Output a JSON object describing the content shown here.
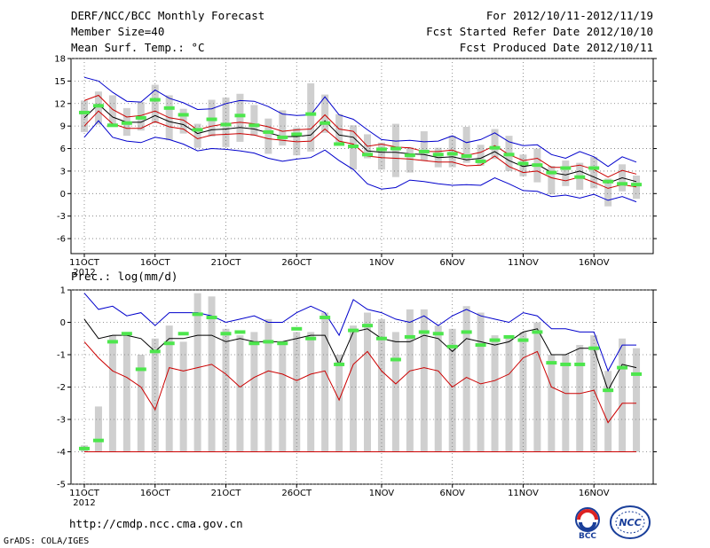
{
  "header": {
    "left": [
      "DERF/NCC/BCC Monthly Forecast",
      "Member Size=40",
      "Mean Surf. Temp.: °C"
    ],
    "right": [
      "For 2012/10/11-2012/11/19",
      "Fcst Started Refer Date 2012/10/10",
      "Fcst Produced Date 2012/10/11"
    ]
  },
  "footer": {
    "url": "http://cmdp.ncc.cma.gov.cn",
    "credit": "GrADS: COLA/IGES"
  },
  "logos": {
    "bcc_text": "BCC",
    "ncc_text": "NCC"
  },
  "colors": {
    "bar": "#cfcfcf",
    "mean": "#000000",
    "max": "#0000cc",
    "min": "#cc0000",
    "obs": "#4de64d",
    "grid": "#777777"
  },
  "chart_data": [
    {
      "type": "line",
      "title": "Mean Surf. Temp.: °C",
      "xlabel": "",
      "ylabel": "",
      "x_tick_labels": [
        "11OCT",
        "16OCT",
        "21OCT",
        "26OCT",
        "1NOV",
        "6NOV",
        "11NOV",
        "16NOV"
      ],
      "x_year_label": "2012",
      "x_tick_days": [
        1,
        6,
        11,
        16,
        22,
        27,
        32,
        37
      ],
      "days": 40,
      "ylim": [
        -8,
        18
      ],
      "yticks": [
        -6,
        -3,
        0,
        3,
        6,
        9,
        12,
        15,
        18
      ],
      "series": [
        {
          "name": "ensemble max",
          "color": "blue",
          "values": [
            15.5,
            15.0,
            13.5,
            12.3,
            12.2,
            13.8,
            12.7,
            12.1,
            11.2,
            11.3,
            12.0,
            12.4,
            12.3,
            11.6,
            10.6,
            10.4,
            10.5,
            12.9,
            10.5,
            9.9,
            8.5,
            7.2,
            7.0,
            7.1,
            6.9,
            7.0,
            7.7,
            6.8,
            7.2,
            8.1,
            6.9,
            6.4,
            6.5,
            5.2,
            4.7,
            5.6,
            4.9,
            3.6,
            4.9,
            4.2
          ]
        },
        {
          "name": "upper bound",
          "color": "red",
          "values": [
            12.4,
            13.1,
            11.2,
            10.2,
            10.4,
            11.0,
            10.1,
            9.8,
            8.5,
            9.0,
            9.3,
            9.5,
            9.3,
            8.9,
            8.3,
            8.5,
            8.6,
            10.5,
            8.6,
            8.3,
            6.3,
            6.6,
            6.2,
            6.1,
            5.6,
            5.6,
            5.8,
            5.1,
            5.5,
            6.4,
            5.2,
            4.4,
            4.7,
            3.5,
            3.5,
            3.8,
            3.2,
            2.2,
            3.1,
            2.6
          ]
        },
        {
          "name": "ensemble mean",
          "color": "black",
          "values": [
            10.1,
            11.9,
            10.2,
            9.5,
            9.5,
            10.4,
            9.6,
            9.2,
            8.0,
            8.5,
            8.6,
            8.8,
            8.6,
            8.1,
            7.6,
            7.6,
            7.8,
            9.7,
            7.8,
            7.5,
            5.7,
            5.5,
            5.5,
            5.3,
            5.2,
            4.8,
            4.9,
            4.5,
            4.7,
            5.6,
            4.4,
            3.6,
            3.9,
            2.8,
            2.5,
            3.0,
            2.2,
            1.4,
            2.1,
            1.6
          ]
        },
        {
          "name": "lower bound",
          "color": "red",
          "values": [
            9.0,
            11.0,
            9.3,
            8.7,
            8.7,
            9.6,
            8.9,
            8.6,
            7.3,
            7.8,
            7.9,
            8.0,
            7.8,
            7.3,
            7.1,
            6.9,
            7.0,
            8.6,
            7.0,
            6.6,
            5.0,
            4.8,
            4.7,
            4.6,
            4.4,
            4.2,
            4.2,
            3.7,
            3.8,
            5.0,
            3.6,
            2.8,
            3.0,
            2.1,
            1.7,
            2.2,
            1.5,
            0.7,
            1.2,
            0.9
          ]
        },
        {
          "name": "ensemble min",
          "color": "blue",
          "values": [
            7.5,
            9.7,
            7.5,
            7.0,
            6.8,
            7.5,
            7.2,
            6.6,
            5.7,
            6.0,
            5.9,
            5.7,
            5.4,
            4.7,
            4.3,
            4.6,
            4.8,
            5.8,
            4.4,
            3.2,
            1.3,
            0.6,
            0.8,
            1.8,
            1.6,
            1.3,
            1.1,
            1.2,
            1.1,
            2.1,
            1.3,
            0.4,
            0.3,
            -0.4,
            -0.2,
            -0.6,
            -0.1,
            -0.9,
            -0.4,
            -1.1
          ]
        },
        {
          "name": "observation/forecast marker",
          "color": "green",
          "values": [
            10.8,
            11.7,
            9.1,
            9.4,
            10.1,
            12.5,
            11.4,
            10.5,
            8.5,
            9.9,
            9.2,
            10.4,
            9.1,
            8.2,
            7.5,
            7.9,
            10.6,
            9.4,
            6.6,
            6.3,
            5.2,
            5.9,
            6.0,
            5.1,
            5.6,
            5.2,
            5.3,
            5.0,
            4.3,
            6.1,
            5.2,
            4.0,
            3.8,
            2.8,
            3.4,
            2.2,
            3.4,
            1.6,
            1.3,
            1.2
          ]
        }
      ],
      "bars": [
        {
          "name": "spread low",
          "values": [
            8.2,
            9.2,
            9.0,
            7.7,
            8.4,
            9.4,
            7.1,
            8.0,
            6.1,
            7.6,
            6.2,
            6.9,
            7.7,
            5.3,
            6.4,
            5.1,
            5.6,
            8.1,
            6.5,
            3.2,
            4.7,
            3.2,
            2.2,
            2.8,
            4.4,
            3.5,
            3.5,
            4.1,
            3.7,
            4.6,
            3.0,
            2.3,
            1.5,
            -0.1,
            1.0,
            0.5,
            0.7,
            -1.7,
            0.3,
            -0.7
          ]
        },
        {
          "name": "spread high",
          "values": [
            12.4,
            13.6,
            13.1,
            11.4,
            12.2,
            14.5,
            13.1,
            11.3,
            9.3,
            12.5,
            12.8,
            13.3,
            11.8,
            10.0,
            11.1,
            8.8,
            14.7,
            13.2,
            10.6,
            9.1,
            7.9,
            6.8,
            9.3,
            6.2,
            8.3,
            6.1,
            7.7,
            8.9,
            6.5,
            8.6,
            7.7,
            5.2,
            6.0,
            3.7,
            4.4,
            4.1,
            4.9,
            2.0,
            3.9,
            2.4
          ]
        }
      ]
    },
    {
      "type": "line",
      "title": "Prec.: log(mm/d)",
      "xlabel": "",
      "ylabel": "",
      "x_tick_labels": [
        "11OCT",
        "16OCT",
        "21OCT",
        "26OCT",
        "1NOV",
        "6NOV",
        "11NOV",
        "16NOV"
      ],
      "x_year_label": "2012",
      "x_tick_days": [
        1,
        6,
        11,
        16,
        22,
        27,
        32,
        37
      ],
      "days": 40,
      "ylim": [
        -5,
        1
      ],
      "yticks": [
        -5,
        -4,
        -3,
        -2,
        -1,
        0,
        1
      ],
      "series": [
        {
          "name": "ensemble max",
          "color": "blue",
          "values": [
            0.9,
            0.4,
            0.5,
            0.2,
            0.3,
            -0.1,
            0.3,
            0.3,
            0.3,
            0.2,
            0.0,
            0.1,
            0.2,
            0.0,
            0.0,
            0.3,
            0.5,
            0.3,
            -0.4,
            0.7,
            0.4,
            0.3,
            0.1,
            0.0,
            0.2,
            -0.1,
            0.2,
            0.4,
            0.2,
            0.1,
            0.0,
            0.3,
            0.2,
            -0.2,
            -0.2,
            -0.3,
            -0.3,
            -1.5,
            -0.7,
            -0.7
          ]
        },
        {
          "name": "ensemble mean",
          "color": "black",
          "values": [
            0.1,
            -0.5,
            -0.4,
            -0.4,
            -0.5,
            -0.9,
            -0.5,
            -0.5,
            -0.4,
            -0.4,
            -0.6,
            -0.5,
            -0.6,
            -0.6,
            -0.6,
            -0.5,
            -0.4,
            -0.4,
            -1.3,
            -0.3,
            -0.2,
            -0.5,
            -0.6,
            -0.6,
            -0.4,
            -0.5,
            -0.9,
            -0.5,
            -0.6,
            -0.7,
            -0.6,
            -0.3,
            -0.2,
            -1.0,
            -1.0,
            -0.8,
            -0.8,
            -2.1,
            -1.3,
            -1.4
          ]
        },
        {
          "name": "ensemble min",
          "color": "red",
          "values": [
            -0.6,
            -1.1,
            -1.5,
            -1.7,
            -2.0,
            -2.7,
            -1.4,
            -1.5,
            -1.4,
            -1.3,
            -1.6,
            -2.0,
            -1.7,
            -1.5,
            -1.6,
            -1.8,
            -1.6,
            -1.5,
            -2.4,
            -1.3,
            -0.9,
            -1.5,
            -1.9,
            -1.5,
            -1.4,
            -1.5,
            -2.0,
            -1.7,
            -1.9,
            -1.8,
            -1.6,
            -1.1,
            -0.9,
            -2.0,
            -2.2,
            -2.2,
            -2.1,
            -3.1,
            -2.5,
            -2.5
          ]
        },
        {
          "name": "observation/forecast marker",
          "color": "green",
          "values": [
            -3.9,
            -3.65,
            -0.6,
            -0.35,
            -1.45,
            -0.9,
            -0.65,
            -0.35,
            0.25,
            0.15,
            -0.35,
            -0.3,
            -0.65,
            -0.6,
            -0.65,
            -0.2,
            -0.5,
            0.15,
            -1.3,
            -0.25,
            -0.1,
            -0.5,
            -1.15,
            -0.45,
            -0.3,
            -0.35,
            -0.75,
            -0.3,
            -0.7,
            -0.55,
            -0.45,
            -0.55,
            -0.3,
            -1.25,
            -1.3,
            -1.3,
            -0.8,
            -2.1,
            -1.4,
            -1.6
          ]
        }
      ],
      "bars": [
        {
          "name": "spread low",
          "values": [
            -4,
            -4,
            -4,
            -4,
            -4,
            -4,
            -4,
            -4,
            -4,
            -4,
            -4,
            -4,
            -4,
            -4,
            -4,
            -4,
            -4,
            -4,
            -4,
            -4,
            -4,
            -4,
            -4,
            -4,
            -4,
            -4,
            -4,
            -4,
            -4,
            -4,
            -4,
            -4,
            -4,
            -4,
            -4,
            -4,
            -4,
            -4,
            -4,
            -4
          ]
        },
        {
          "name": "spread high",
          "values": [
            -3.8,
            -2.6,
            -0.4,
            -0.3,
            -1.0,
            -0.5,
            -0.1,
            -0.6,
            0.9,
            0.8,
            -0.2,
            -0.4,
            -0.3,
            0.1,
            -0.6,
            -0.3,
            -0.3,
            0.3,
            -1.0,
            -0.1,
            0.3,
            0.1,
            -0.3,
            0.4,
            0.4,
            -0.1,
            -0.2,
            0.5,
            0.3,
            -0.4,
            -0.5,
            -0.3,
            0.0,
            -1.0,
            -1.0,
            -0.7,
            -0.4,
            -1.5,
            -0.5,
            -0.8
          ]
        }
      ],
      "baseline": -4
    }
  ]
}
